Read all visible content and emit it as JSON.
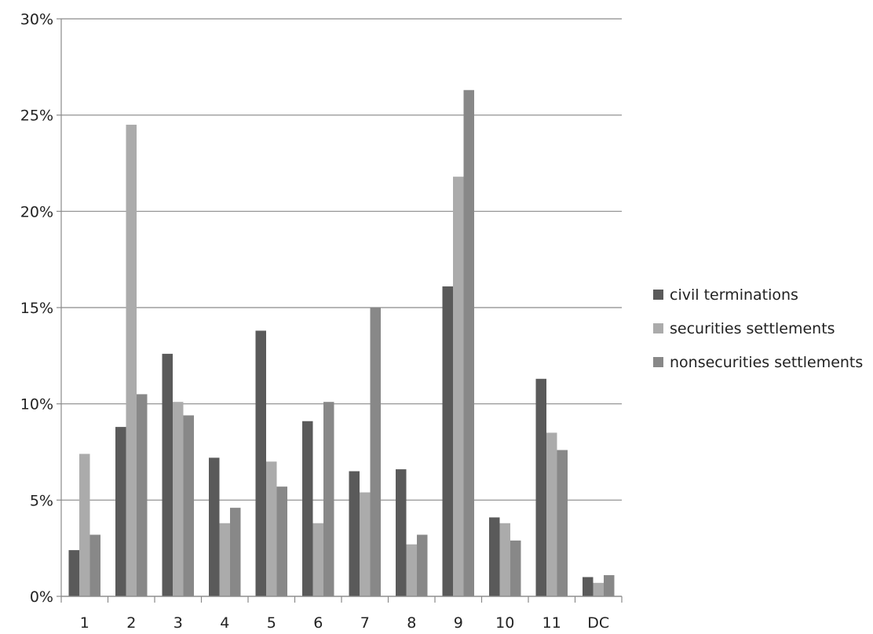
{
  "chart_data": {
    "type": "bar",
    "categories": [
      "1",
      "2",
      "3",
      "4",
      "5",
      "6",
      "7",
      "8",
      "9",
      "10",
      "11",
      "DC"
    ],
    "series": [
      {
        "name": "civil terminations",
        "color": "#5a5a5a",
        "values": [
          2.4,
          8.8,
          12.6,
          7.2,
          13.8,
          9.1,
          6.5,
          6.6,
          16.1,
          4.1,
          11.3,
          1.0
        ]
      },
      {
        "name": "securities settlements",
        "color": "#ababab",
        "values": [
          7.4,
          24.5,
          10.1,
          3.8,
          7.0,
          3.8,
          5.4,
          2.7,
          21.8,
          3.8,
          8.5,
          0.7
        ]
      },
      {
        "name": "nonsecurities settlements",
        "color": "#888888",
        "values": [
          3.2,
          10.5,
          9.4,
          4.6,
          5.7,
          10.1,
          15.0,
          3.2,
          26.3,
          2.9,
          7.6,
          1.1
        ]
      }
    ],
    "y_ticks": [
      "0%",
      "5%",
      "10%",
      "15%",
      "20%",
      "25%",
      "30%"
    ],
    "ylim": [
      0,
      30
    ],
    "grid": true,
    "legend_position": "right"
  }
}
